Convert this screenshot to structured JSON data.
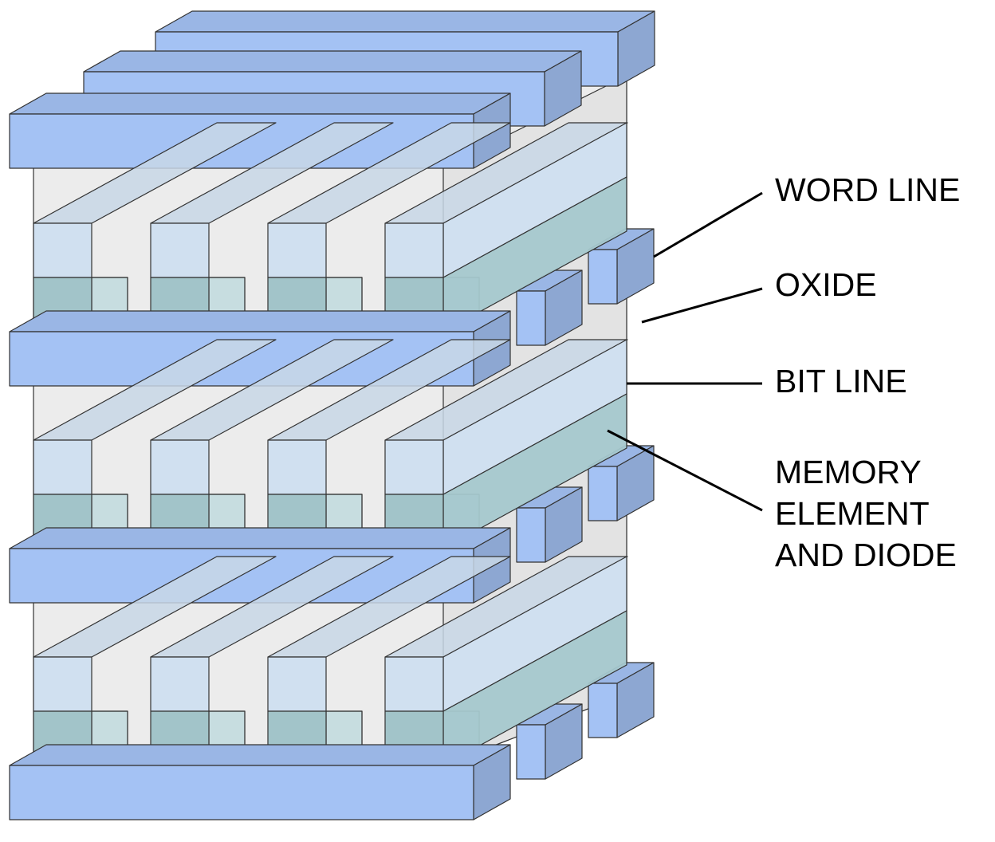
{
  "labels": {
    "word_line": "WORD LINE",
    "oxide": "OXIDE",
    "bit_line": "BIT LINE",
    "memory_line1": "MEMORY",
    "memory_line2": "ELEMENT",
    "memory_line3": "AND DIODE"
  },
  "colors": {
    "line_blue": "#a4c2f4",
    "bitline_light": "#d0e0f0",
    "memory_teal": "#a2c4c9",
    "oxide_gray": "#ececec",
    "edge": "#333333"
  }
}
